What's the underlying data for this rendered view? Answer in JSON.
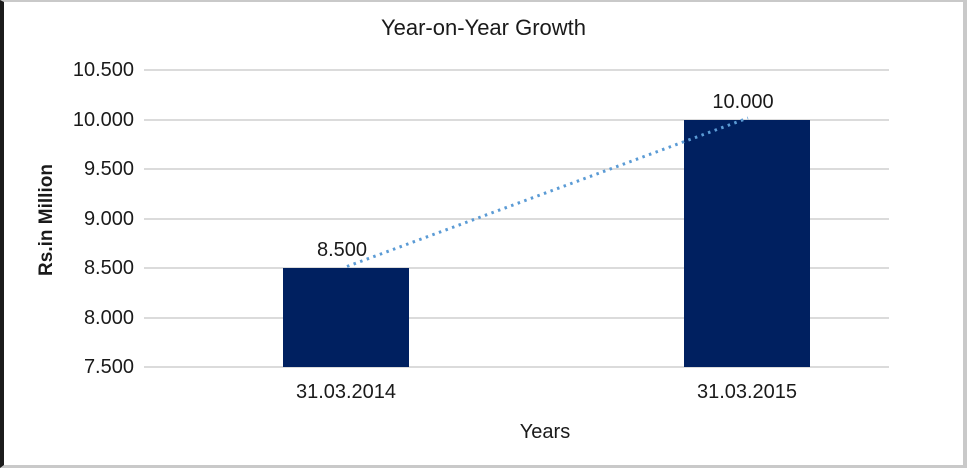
{
  "chart_data": {
    "type": "bar",
    "title": "Year-on-Year Growth",
    "xlabel": "Years",
    "ylabel": "Rs.in Million",
    "categories": [
      "31.03.2014",
      "31.03.2015"
    ],
    "values": [
      8500,
      10000
    ],
    "value_labels": [
      "8.500",
      "10.000"
    ],
    "ylim": [
      7500,
      10500
    ],
    "ytick_step": 500,
    "ytick_labels": [
      "7.500",
      "8.000",
      "8.500",
      "9.000",
      "9.500",
      "10.000",
      "10.500"
    ],
    "grid": "horizontal-only",
    "legend": "none",
    "bar_color": "#002060",
    "gridline_color": "#dbdbdb",
    "trendline": {
      "style": "dotted",
      "color": "#5B9BD5",
      "connects": [
        "31.03.2014",
        "31.03.2015"
      ]
    }
  }
}
